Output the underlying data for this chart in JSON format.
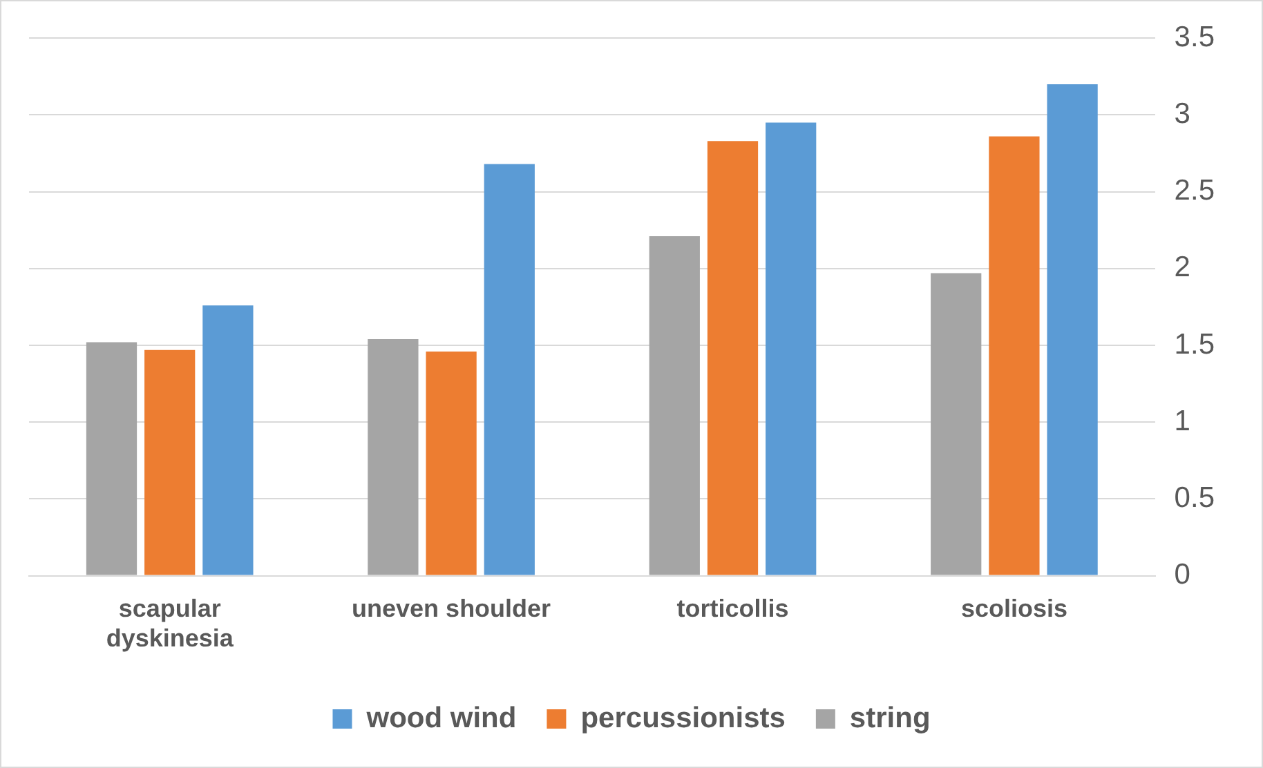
{
  "chart_data": {
    "type": "bar",
    "categories": [
      "scapular dyskinesia",
      "uneven shoulder",
      "torticollis",
      "scoliosis"
    ],
    "series": [
      {
        "name": "string",
        "color": "#a5a5a5",
        "values": [
          1.52,
          1.54,
          2.21,
          1.97
        ]
      },
      {
        "name": "percussionists",
        "color": "#ed7d31",
        "values": [
          1.47,
          1.46,
          2.83,
          2.86
        ]
      },
      {
        "name": "wood wind",
        "color": "#5b9bd5",
        "values": [
          1.76,
          2.68,
          2.95,
          3.2
        ]
      }
    ],
    "ylim": [
      0,
      3.5
    ],
    "yticks": [
      0,
      0.5,
      1,
      1.5,
      2,
      2.5,
      3,
      3.5
    ],
    "grid": "y",
    "legend": "bottom"
  }
}
